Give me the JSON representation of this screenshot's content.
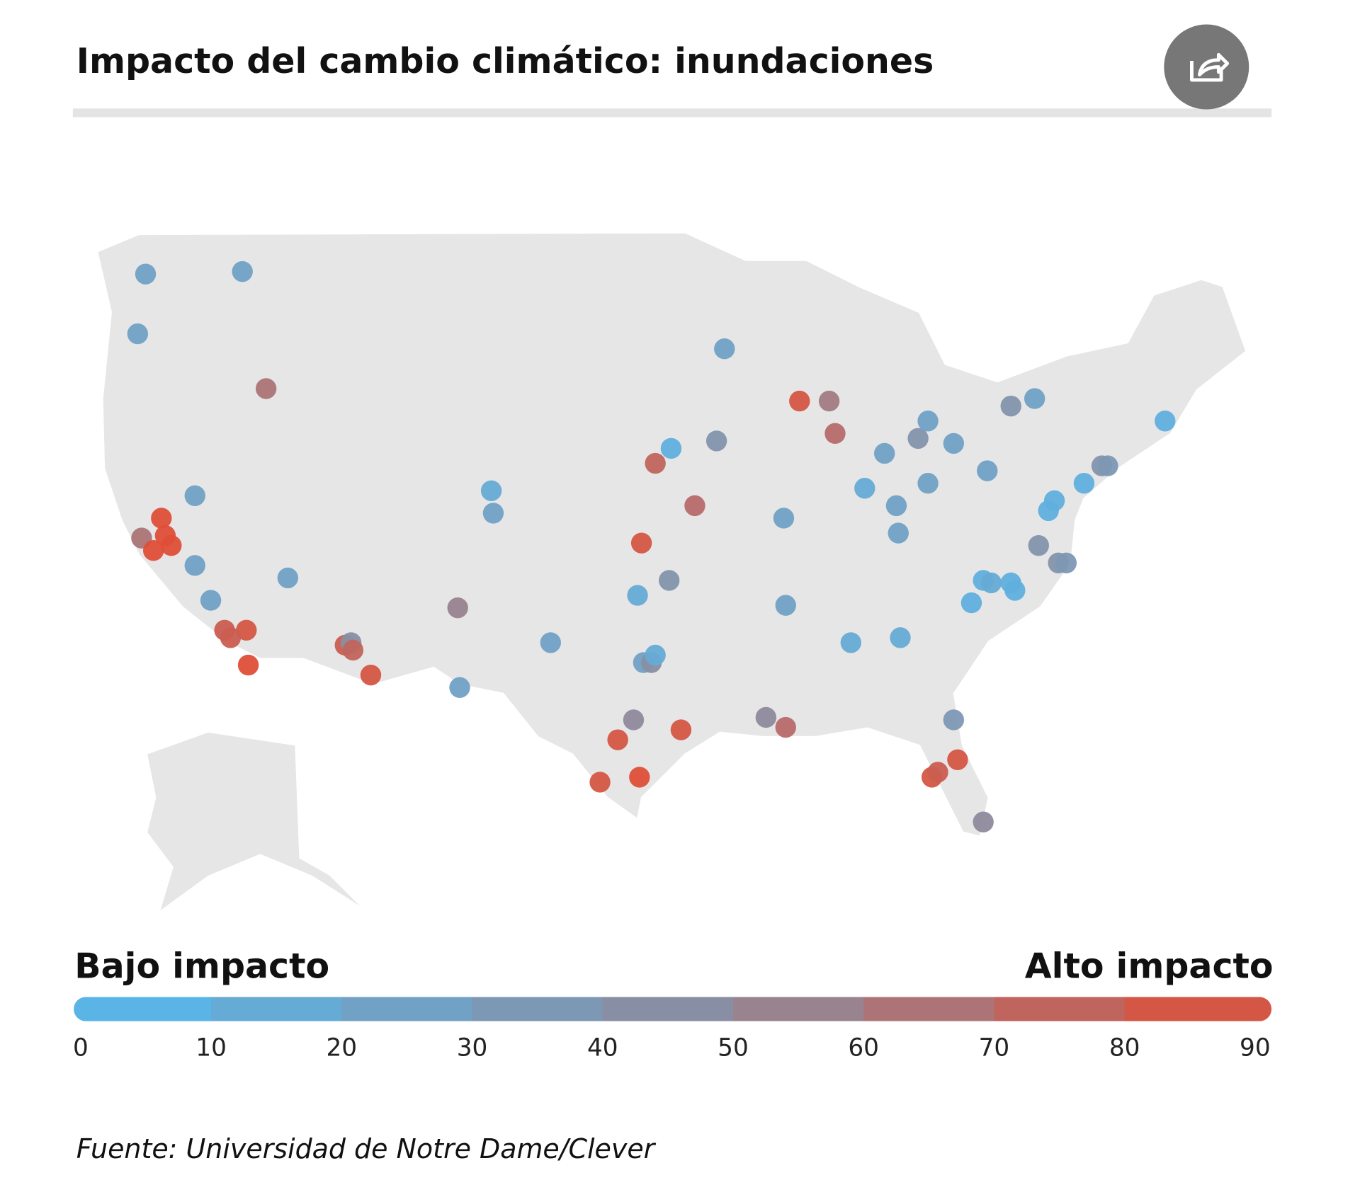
{
  "chart_data": {
    "type": "map",
    "title": "Impacto del cambio climático: inundaciones",
    "legend_low_label": "Bajo impacto",
    "legend_high_label": "Alto impacto",
    "source": "Fuente: Universidad de Notre Dame/Clever",
    "colorbar": {
      "lim": [
        0,
        90
      ],
      "ticks": [
        0,
        10,
        20,
        30,
        40,
        50,
        60,
        70,
        80,
        90
      ],
      "colors": [
        "#5ab4e5",
        "#8e8a9c",
        "#e8472b"
      ]
    },
    "points": {
      "lon": [
        -122.4,
        -117.5,
        -122.8,
        -116.3,
        -119.9,
        -121.6,
        -122.6,
        -121.4,
        -122.0,
        -121.1,
        -119.9,
        -119.1,
        -115.2,
        -118.4,
        -117.3,
        -118.1,
        -117.2,
        -112.3,
        -112.0,
        -111.9,
        -111.0,
        -106.6,
        -106.5,
        -104.9,
        -104.8,
        -101.9,
        -97.5,
        -97.3,
        -95.9,
        -96.6,
        -95.8,
        -93.5,
        -93.1,
        -94.6,
        -97.2,
        -96.8,
        -96.6,
        -97.7,
        -98.5,
        -95.3,
        -99.4,
        -97.4,
        -91.0,
        -90.0,
        -90.1,
        -90.0,
        -89.3,
        -87.8,
        -87.5,
        -86.7,
        -86.0,
        -85.0,
        -84.4,
        -84.3,
        -84.2,
        -83.3,
        -82.8,
        -82.8,
        -81.5,
        -81.5,
        -79.8,
        -78.6,
        -77.4,
        -80.6,
        -80.0,
        -79.6,
        -78.6,
        -78.4,
        -77.2,
        -76.2,
        -75.8,
        -76.7,
        -76.4,
        -74.9,
        -74.0,
        -73.7,
        -70.8,
        -82.6,
        -82.3,
        -81.3,
        -80.0
      ],
      "lat": [
        47.4,
        47.5,
        45.0,
        42.8,
        38.5,
        37.6,
        36.8,
        36.9,
        36.3,
        36.5,
        35.7,
        34.3,
        35.2,
        33.1,
        33.1,
        32.8,
        31.7,
        32.5,
        32.6,
        32.3,
        31.3,
        34.0,
        30.8,
        38.7,
        37.8,
        32.6,
        34.5,
        36.6,
        35.1,
        39.8,
        40.4,
        40.7,
        44.4,
        38.1,
        31.8,
        31.8,
        32.1,
        29.5,
        28.7,
        29.1,
        27.0,
        27.2,
        29.6,
        29.2,
        37.6,
        34.1,
        42.3,
        42.3,
        41.0,
        32.6,
        38.8,
        40.2,
        38.1,
        37.0,
        32.8,
        40.8,
        41.5,
        39.0,
        40.6,
        29.5,
        39.5,
        42.1,
        42.4,
        34.2,
        35.1,
        35.0,
        35.0,
        34.7,
        36.5,
        35.8,
        35.8,
        37.9,
        38.3,
        39.0,
        39.7,
        39.7,
        41.5,
        27.2,
        27.4,
        27.9,
        25.4
      ],
      "values": [
        20,
        20,
        20,
        60,
        20,
        85,
        60,
        85,
        85,
        85,
        20,
        20,
        20,
        75,
        80,
        75,
        85,
        75,
        40,
        70,
        80,
        50,
        20,
        10,
        20,
        20,
        10,
        80,
        35,
        70,
        5,
        35,
        20,
        65,
        20,
        40,
        10,
        45,
        80,
        80,
        80,
        85,
        45,
        65,
        20,
        20,
        80,
        55,
        65,
        10,
        10,
        20,
        20,
        20,
        10,
        35,
        20,
        20,
        20,
        30,
        20,
        35,
        20,
        5,
        5,
        10,
        5,
        5,
        35,
        35,
        30,
        5,
        5,
        5,
        35,
        30,
        5,
        80,
        75,
        80,
        45
      ]
    }
  }
}
